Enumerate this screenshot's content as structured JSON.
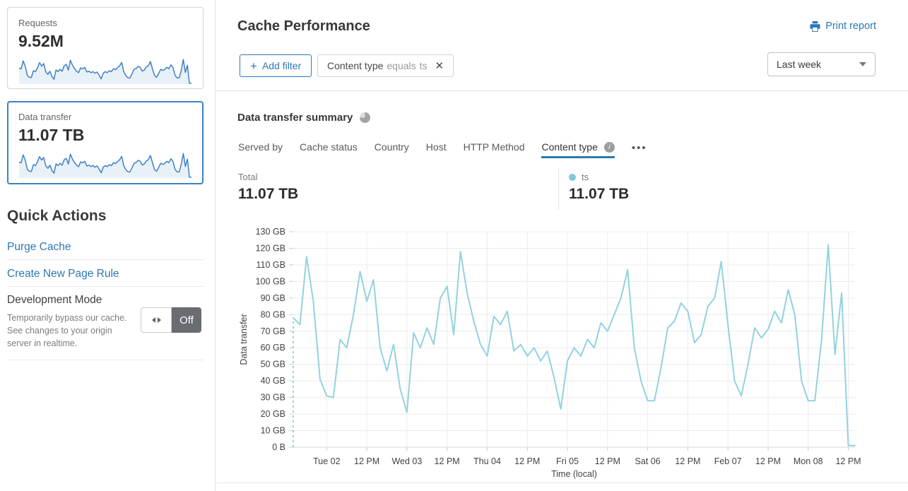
{
  "sidebar": {
    "cards": [
      {
        "label": "Requests",
        "value": "9.52M"
      },
      {
        "label": "Data transfer",
        "value": "11.07 TB"
      }
    ],
    "quick_actions": {
      "title": "Quick Actions",
      "links": [
        "Purge Cache",
        "Create New Page Rule"
      ],
      "development_mode": {
        "label": "Development Mode",
        "description": "Temporarily bypass our cache. See changes to your origin server in realtime.",
        "toggle_state": "Off"
      }
    }
  },
  "header": {
    "title": "Cache Performance",
    "print_report_label": "Print report"
  },
  "filter_bar": {
    "add_filter_label": "Add filter",
    "chip": {
      "field": "Content type",
      "operator": "equals",
      "value": "ts"
    },
    "time_range": "Last week"
  },
  "summary": {
    "title": "Data transfer summary",
    "tabs": [
      "Served by",
      "Cache status",
      "Country",
      "Host",
      "HTTP Method",
      "Content type"
    ],
    "active_tab": "Content type",
    "more_label": "•••",
    "total": {
      "label": "Total",
      "value": "11.07 TB"
    },
    "legend": [
      {
        "name": "ts",
        "value": "11.07 TB",
        "color": "#7fc9da"
      }
    ]
  },
  "chart_data": {
    "type": "line",
    "title": "Data transfer summary",
    "xlabel": "Time (local)",
    "ylabel": "Data transfer",
    "unit": "GB",
    "ylim": [
      0,
      130
    ],
    "grid": true,
    "y_ticks": [
      "0 B",
      "10 GB",
      "20 GB",
      "30 GB",
      "40 GB",
      "50 GB",
      "60 GB",
      "70 GB",
      "80 GB",
      "90 GB",
      "100 GB",
      "110 GB",
      "120 GB",
      "130 GB"
    ],
    "x_tick_labels": [
      "Tue 02",
      "12 PM",
      "Wed 03",
      "12 PM",
      "Thu 04",
      "12 PM",
      "Fri 05",
      "12 PM",
      "Sat 06",
      "12 PM",
      "Feb 07",
      "12 PM",
      "Mon 08",
      "12 PM"
    ],
    "x_tick_indices": [
      5,
      11,
      17,
      23,
      29,
      35,
      41,
      47,
      53,
      59,
      65,
      71,
      77,
      83
    ],
    "points_interval_hours": 2,
    "start_dashed": true,
    "series": [
      {
        "name": "ts",
        "color": "#92d2e0",
        "values": [
          78,
          74,
          115,
          88,
          41,
          31,
          30,
          65,
          60,
          80,
          106,
          88,
          101,
          60,
          46,
          62,
          35,
          21,
          69,
          60,
          72,
          62,
          90,
          97,
          68,
          118,
          93,
          76,
          62,
          55,
          79,
          74,
          82,
          58,
          62,
          55,
          60,
          52,
          58,
          42,
          23,
          52,
          60,
          55,
          65,
          60,
          75,
          70,
          80,
          90,
          107,
          60,
          40,
          28,
          28,
          48,
          72,
          76,
          87,
          82,
          63,
          68,
          85,
          90,
          112,
          74,
          40,
          31,
          50,
          72,
          66,
          71,
          82,
          75,
          95,
          80,
          40,
          28,
          28,
          65,
          122,
          56,
          93,
          1,
          1
        ]
      }
    ]
  },
  "colors": {
    "link_blue": "#2c78b4",
    "sparkline_stroke": "#3e82c4",
    "sparkline_fill": "#e9f1f8",
    "selected_card_border": "#3e82c4",
    "tab_underline": "#2a7ca5",
    "chart_line": "#92d2e0"
  }
}
